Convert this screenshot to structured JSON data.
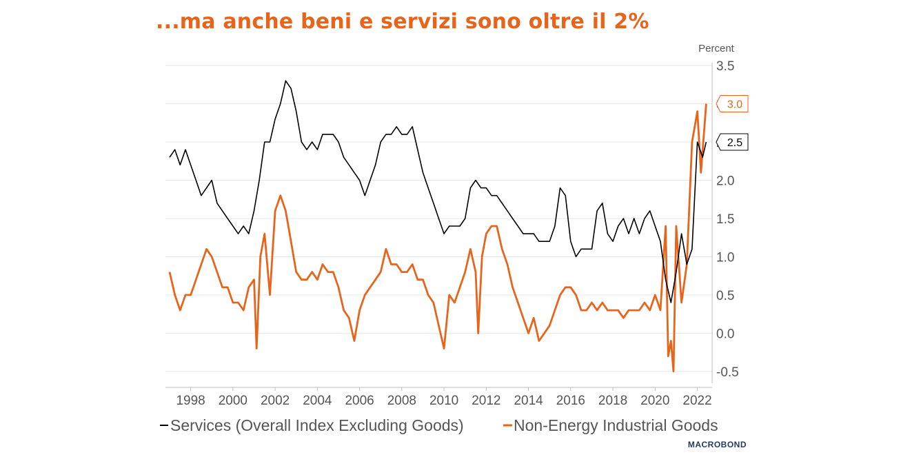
{
  "title": "...ma anche beni e servizi sono oltre il 2%",
  "brand": "MACROBOND",
  "chart_data": {
    "type": "line",
    "unit_label": "Percent",
    "xlim": [
      1997.0,
      2022.7
    ],
    "ylim": [
      -0.6,
      3.5
    ],
    "x_ticks": [
      "1998",
      "2000",
      "2002",
      "2004",
      "2006",
      "2008",
      "2010",
      "2012",
      "2014",
      "2016",
      "2018",
      "2020",
      "2022"
    ],
    "y_ticks": [
      "-0.5",
      "0.0",
      "0.5",
      "1.0",
      "1.5",
      "2.0",
      "2.5",
      "3.0",
      "3.5"
    ],
    "grid": "horizontal",
    "y_axis_position": "right",
    "legend_position": "bottom",
    "series": [
      {
        "name": "Services (Overall Index Excluding Goods)",
        "color": "#000000",
        "end_label": "2.5",
        "points": [
          [
            1997.0,
            2.3
          ],
          [
            1997.25,
            2.4
          ],
          [
            1997.5,
            2.2
          ],
          [
            1997.75,
            2.4
          ],
          [
            1998.0,
            2.2
          ],
          [
            1998.25,
            2.0
          ],
          [
            1998.5,
            1.8
          ],
          [
            1998.75,
            1.9
          ],
          [
            1999.0,
            2.0
          ],
          [
            1999.25,
            1.7
          ],
          [
            1999.5,
            1.6
          ],
          [
            1999.75,
            1.5
          ],
          [
            2000.0,
            1.4
          ],
          [
            2000.25,
            1.3
          ],
          [
            2000.5,
            1.4
          ],
          [
            2000.75,
            1.3
          ],
          [
            2001.0,
            1.6
          ],
          [
            2001.25,
            2.0
          ],
          [
            2001.5,
            2.5
          ],
          [
            2001.75,
            2.5
          ],
          [
            2002.0,
            2.8
          ],
          [
            2002.25,
            3.0
          ],
          [
            2002.5,
            3.3
          ],
          [
            2002.75,
            3.2
          ],
          [
            2003.0,
            2.9
          ],
          [
            2003.25,
            2.5
          ],
          [
            2003.5,
            2.4
          ],
          [
            2003.75,
            2.5
          ],
          [
            2004.0,
            2.4
          ],
          [
            2004.25,
            2.6
          ],
          [
            2004.5,
            2.6
          ],
          [
            2004.75,
            2.6
          ],
          [
            2005.0,
            2.5
          ],
          [
            2005.25,
            2.3
          ],
          [
            2005.5,
            2.2
          ],
          [
            2005.75,
            2.1
          ],
          [
            2006.0,
            2.0
          ],
          [
            2006.25,
            1.8
          ],
          [
            2006.5,
            2.0
          ],
          [
            2006.75,
            2.2
          ],
          [
            2007.0,
            2.5
          ],
          [
            2007.25,
            2.6
          ],
          [
            2007.5,
            2.6
          ],
          [
            2007.75,
            2.7
          ],
          [
            2008.0,
            2.6
          ],
          [
            2008.25,
            2.6
          ],
          [
            2008.5,
            2.7
          ],
          [
            2008.75,
            2.4
          ],
          [
            2009.0,
            2.1
          ],
          [
            2009.25,
            1.9
          ],
          [
            2009.5,
            1.7
          ],
          [
            2009.75,
            1.5
          ],
          [
            2010.0,
            1.3
          ],
          [
            2010.25,
            1.4
          ],
          [
            2010.5,
            1.4
          ],
          [
            2010.75,
            1.4
          ],
          [
            2011.0,
            1.5
          ],
          [
            2011.25,
            1.9
          ],
          [
            2011.5,
            2.0
          ],
          [
            2011.75,
            1.9
          ],
          [
            2012.0,
            1.9
          ],
          [
            2012.25,
            1.8
          ],
          [
            2012.5,
            1.8
          ],
          [
            2012.75,
            1.7
          ],
          [
            2013.0,
            1.6
          ],
          [
            2013.25,
            1.5
          ],
          [
            2013.5,
            1.4
          ],
          [
            2013.75,
            1.3
          ],
          [
            2014.0,
            1.3
          ],
          [
            2014.25,
            1.3
          ],
          [
            2014.5,
            1.2
          ],
          [
            2014.75,
            1.2
          ],
          [
            2015.0,
            1.2
          ],
          [
            2015.25,
            1.4
          ],
          [
            2015.5,
            1.9
          ],
          [
            2015.75,
            1.8
          ],
          [
            2016.0,
            1.2
          ],
          [
            2016.25,
            1.0
          ],
          [
            2016.5,
            1.1
          ],
          [
            2016.75,
            1.1
          ],
          [
            2017.0,
            1.1
          ],
          [
            2017.25,
            1.6
          ],
          [
            2017.5,
            1.7
          ],
          [
            2017.75,
            1.3
          ],
          [
            2018.0,
            1.2
          ],
          [
            2018.25,
            1.4
          ],
          [
            2018.5,
            1.5
          ],
          [
            2018.75,
            1.3
          ],
          [
            2019.0,
            1.5
          ],
          [
            2019.25,
            1.3
          ],
          [
            2019.5,
            1.5
          ],
          [
            2019.75,
            1.6
          ],
          [
            2020.0,
            1.4
          ],
          [
            2020.25,
            1.2
          ],
          [
            2020.5,
            0.7
          ],
          [
            2020.75,
            0.4
          ],
          [
            2021.0,
            0.8
          ],
          [
            2021.25,
            1.3
          ],
          [
            2021.5,
            0.9
          ],
          [
            2021.75,
            1.1
          ],
          [
            2022.0,
            2.5
          ],
          [
            2022.25,
            2.3
          ],
          [
            2022.42,
            2.5
          ]
        ]
      },
      {
        "name": "Non-Energy Industrial Goods",
        "color": "#e8641b",
        "end_label": "3.0",
        "points": [
          [
            1997.0,
            0.8
          ],
          [
            1997.25,
            0.5
          ],
          [
            1997.5,
            0.3
          ],
          [
            1997.75,
            0.5
          ],
          [
            1998.0,
            0.5
          ],
          [
            1998.25,
            0.7
          ],
          [
            1998.5,
            0.9
          ],
          [
            1998.75,
            1.1
          ],
          [
            1999.0,
            1.0
          ],
          [
            1999.25,
            0.8
          ],
          [
            1999.5,
            0.6
          ],
          [
            1999.75,
            0.6
          ],
          [
            2000.0,
            0.4
          ],
          [
            2000.25,
            0.4
          ],
          [
            2000.5,
            0.3
          ],
          [
            2000.75,
            0.6
          ],
          [
            2001.0,
            0.7
          ],
          [
            2001.12,
            -0.2
          ],
          [
            2001.3,
            1.0
          ],
          [
            2001.5,
            1.3
          ],
          [
            2001.75,
            0.5
          ],
          [
            2002.0,
            1.6
          ],
          [
            2002.25,
            1.8
          ],
          [
            2002.5,
            1.6
          ],
          [
            2002.75,
            1.2
          ],
          [
            2003.0,
            0.8
          ],
          [
            2003.25,
            0.7
          ],
          [
            2003.5,
            0.7
          ],
          [
            2003.75,
            0.8
          ],
          [
            2004.0,
            0.7
          ],
          [
            2004.25,
            0.9
          ],
          [
            2004.5,
            0.8
          ],
          [
            2004.75,
            0.8
          ],
          [
            2005.0,
            0.6
          ],
          [
            2005.25,
            0.3
          ],
          [
            2005.5,
            0.2
          ],
          [
            2005.75,
            -0.1
          ],
          [
            2006.0,
            0.3
          ],
          [
            2006.25,
            0.5
          ],
          [
            2006.5,
            0.6
          ],
          [
            2006.75,
            0.7
          ],
          [
            2007.0,
            0.8
          ],
          [
            2007.25,
            1.1
          ],
          [
            2007.5,
            0.9
          ],
          [
            2007.75,
            0.9
          ],
          [
            2008.0,
            0.8
          ],
          [
            2008.25,
            0.8
          ],
          [
            2008.5,
            0.9
          ],
          [
            2008.75,
            0.7
          ],
          [
            2009.0,
            0.7
          ],
          [
            2009.25,
            0.5
          ],
          [
            2009.5,
            0.4
          ],
          [
            2009.75,
            0.1
          ],
          [
            2010.0,
            -0.2
          ],
          [
            2010.25,
            0.5
          ],
          [
            2010.5,
            0.4
          ],
          [
            2010.75,
            0.6
          ],
          [
            2011.0,
            0.8
          ],
          [
            2011.25,
            1.1
          ],
          [
            2011.5,
            0.8
          ],
          [
            2011.62,
            0.0
          ],
          [
            2011.8,
            1.0
          ],
          [
            2012.0,
            1.3
          ],
          [
            2012.25,
            1.4
          ],
          [
            2012.5,
            1.4
          ],
          [
            2012.75,
            1.1
          ],
          [
            2013.0,
            0.9
          ],
          [
            2013.25,
            0.6
          ],
          [
            2013.5,
            0.4
          ],
          [
            2013.75,
            0.2
          ],
          [
            2014.0,
            0.0
          ],
          [
            2014.25,
            0.2
          ],
          [
            2014.5,
            -0.1
          ],
          [
            2014.75,
            0.0
          ],
          [
            2015.0,
            0.1
          ],
          [
            2015.25,
            0.3
          ],
          [
            2015.5,
            0.5
          ],
          [
            2015.75,
            0.6
          ],
          [
            2016.0,
            0.6
          ],
          [
            2016.25,
            0.5
          ],
          [
            2016.5,
            0.3
          ],
          [
            2016.75,
            0.3
          ],
          [
            2017.0,
            0.4
          ],
          [
            2017.25,
            0.3
          ],
          [
            2017.5,
            0.4
          ],
          [
            2017.75,
            0.3
          ],
          [
            2018.0,
            0.3
          ],
          [
            2018.25,
            0.3
          ],
          [
            2018.5,
            0.2
          ],
          [
            2018.75,
            0.3
          ],
          [
            2019.0,
            0.3
          ],
          [
            2019.25,
            0.3
          ],
          [
            2019.5,
            0.4
          ],
          [
            2019.75,
            0.3
          ],
          [
            2020.0,
            0.5
          ],
          [
            2020.25,
            0.3
          ],
          [
            2020.5,
            1.4
          ],
          [
            2020.62,
            -0.3
          ],
          [
            2020.75,
            -0.1
          ],
          [
            2020.87,
            -0.5
          ],
          [
            2021.0,
            1.4
          ],
          [
            2021.25,
            0.4
          ],
          [
            2021.5,
            0.9
          ],
          [
            2021.75,
            2.5
          ],
          [
            2022.0,
            2.9
          ],
          [
            2022.17,
            2.1
          ],
          [
            2022.42,
            3.0
          ]
        ]
      }
    ]
  }
}
